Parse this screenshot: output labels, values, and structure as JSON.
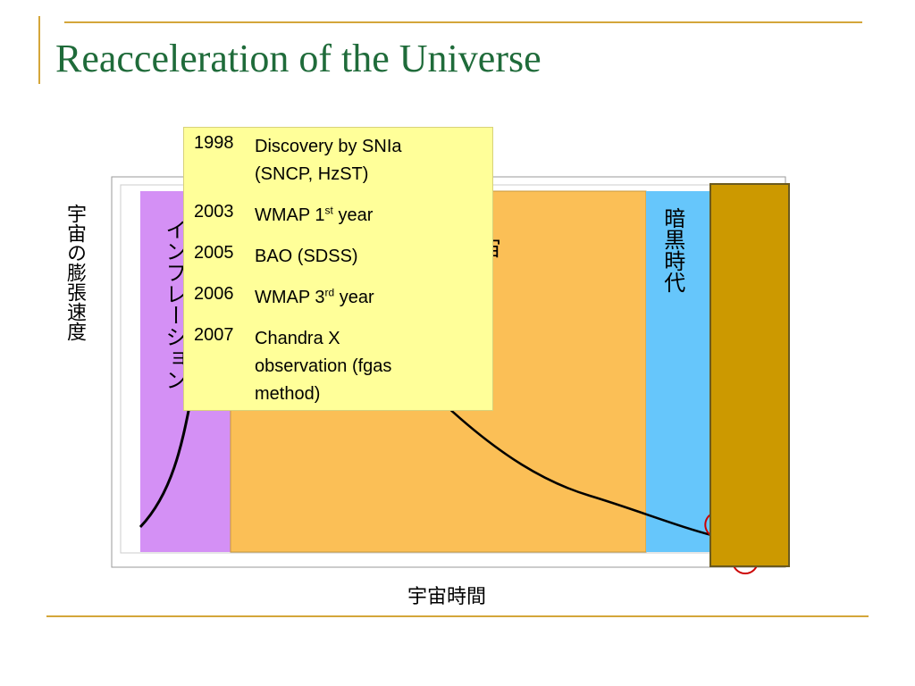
{
  "title": "Reacceleration of the Universe",
  "axes": {
    "y_label": "宇宙の膨張速度",
    "x_label": "宇宙時間"
  },
  "regions": {
    "inflation_label": "インフレーション",
    "middle_label_fragment": "宙",
    "dark_age_label": "暗黒時代"
  },
  "colors": {
    "title": "#1f6b3a",
    "accent_line": "#d4a63a",
    "inflation_region": "#d490f5",
    "middle_region": "#fbbf56",
    "dark_age_region": "#66c6fb",
    "overlay_box": "#cc9900",
    "timeline_box": "#ffff99"
  },
  "timeline": [
    {
      "year": "1998",
      "text": "Discovery by SNIa",
      "line2": "(SNCP, HzST)"
    },
    {
      "year": "2003",
      "text": "WMAP 1",
      "sup": "st",
      "suffix": " year"
    },
    {
      "year": "2005",
      "text": "BAO (SDSS)"
    },
    {
      "year": "2006",
      "text": "WMAP 3",
      "sup": "rd",
      "suffix": " year"
    },
    {
      "year": "2007",
      "text": "Chandra X",
      "line2": "observation (fgas",
      "line3": "method)"
    }
  ]
}
